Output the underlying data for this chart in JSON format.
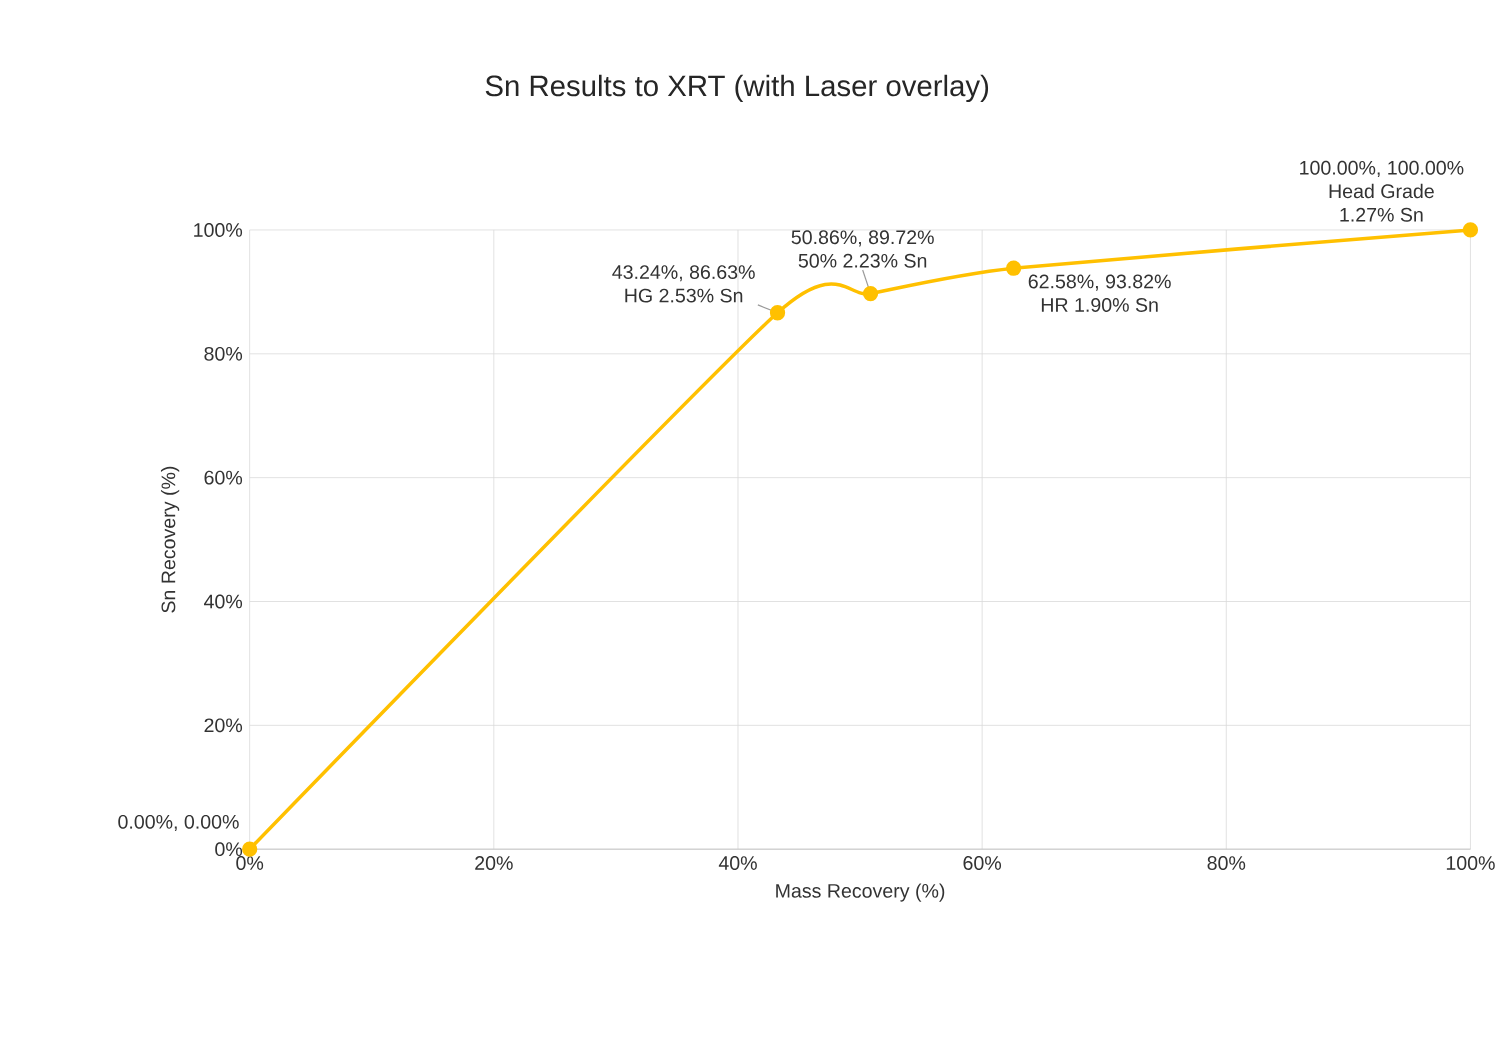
{
  "chart_data": {
    "type": "line",
    "title": "Sn Results to XRT (with Laser overlay)",
    "xlabel": "Mass Recovery (%)",
    "ylabel": "Sn Recovery (%)",
    "x": [
      0,
      43.24,
      50.86,
      62.58,
      100
    ],
    "series": [
      {
        "color": "#ffc000",
        "values": [
          0,
          86.63,
          89.72,
          93.82,
          100
        ]
      }
    ],
    "xlim": [
      0,
      100
    ],
    "ylim": [
      0,
      100
    ],
    "xticks": [
      {
        "value": 0,
        "label": "0%"
      },
      {
        "value": 20,
        "label": "20%"
      },
      {
        "value": 40,
        "label": "40%"
      },
      {
        "value": 60,
        "label": "60%"
      },
      {
        "value": 80,
        "label": "80%"
      },
      {
        "value": 100,
        "label": "100%"
      }
    ],
    "yticks": [
      {
        "value": 0,
        "label": "0%"
      },
      {
        "value": 20,
        "label": "20%"
      },
      {
        "value": 40,
        "label": "40%"
      },
      {
        "value": 60,
        "label": "60%"
      },
      {
        "value": 80,
        "label": "80%"
      },
      {
        "value": 100,
        "label": "100%"
      }
    ],
    "grid": true,
    "marker": "circle",
    "line_style": "solid",
    "annotations": [
      {
        "text": "0.00%, 0.00%",
        "x": 0,
        "y": 0
      },
      {
        "text": "43.24%, 86.63%",
        "x": 43.24,
        "y": 86.63
      },
      {
        "text": "HG 2.53% Sn",
        "x": 43.24,
        "y": 86.63
      },
      {
        "text": "50.86%, 89.72%",
        "x": 50.86,
        "y": 89.72
      },
      {
        "text": "50% 2.23% Sn",
        "x": 50.86,
        "y": 89.72
      },
      {
        "text": "62.58%, 93.82%",
        "x": 62.58,
        "y": 93.82
      },
      {
        "text": "HR 1.90% Sn",
        "x": 62.58,
        "y": 93.82
      },
      {
        "text": "100.00%, 100.00%",
        "x": 100,
        "y": 100
      },
      {
        "text": "Head Grade",
        "x": 100,
        "y": 100
      },
      {
        "text": "1.27% Sn",
        "x": 100,
        "y": 100
      }
    ]
  }
}
